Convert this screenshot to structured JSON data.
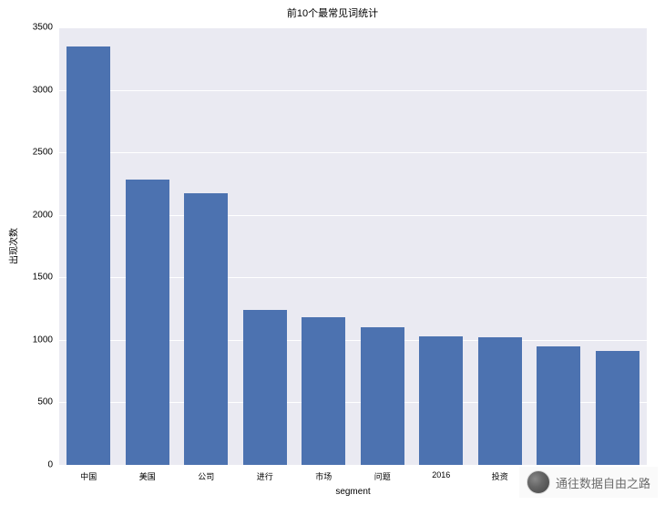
{
  "chart": {
    "type": "bar",
    "title": "前10个最常见词统计",
    "title_fontsize": 11,
    "xlabel": "segment",
    "ylabel": "出现次数",
    "label_fontsize": 10,
    "tick_fontsize": 10,
    "background_color": "#eaeaf2",
    "grid_color": "#ffffff",
    "bar_color": "#4c72b0",
    "bar_width": 0.75,
    "ylim": [
      0,
      3500
    ],
    "yticks": [
      0,
      500,
      1000,
      1500,
      2000,
      2500,
      3000,
      3500
    ],
    "categories": [
      "中国",
      "美国",
      "公司",
      "进行",
      "市场",
      "问题",
      "2016",
      "投资",
      "",
      ""
    ],
    "values": [
      3350,
      2280,
      2170,
      1240,
      1180,
      1100,
      1030,
      1020,
      950,
      910
    ]
  },
  "watermark": {
    "text": "通往数据自由之路",
    "icon_name": "wechat-avatar"
  }
}
